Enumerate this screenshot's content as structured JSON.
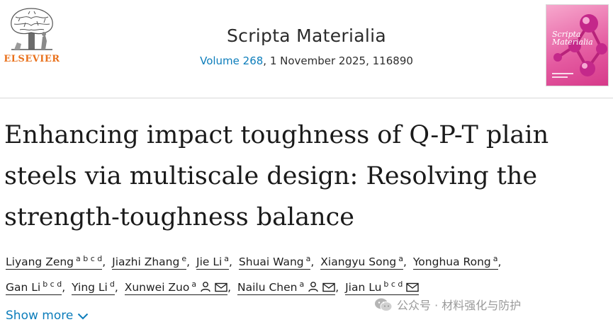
{
  "header": {
    "publisher_name": "ELSEVIER",
    "journal_name": "Scripta Materialia",
    "volume_link": "Volume 268",
    "citation_rest": ", 1 November 2025, 116890",
    "cover_title": "Scripta Materialia",
    "cover_icon": "molecule-cover-art"
  },
  "article": {
    "title_lines": [
      "Enhancing impact toughness of Q-P-T plain",
      "steels via multiscale design: Resolving the",
      "strength-toughness balance"
    ]
  },
  "authors": [
    {
      "name": "Liyang Zeng",
      "affiliations": "a b c d"
    },
    {
      "name": "Jiazhi Zhang",
      "affiliations": "e"
    },
    {
      "name": "Jie Li",
      "affiliations": "a"
    },
    {
      "name": "Shuai Wang",
      "affiliations": "a"
    },
    {
      "name": "Xiangyu Song",
      "affiliations": "a"
    },
    {
      "name": "Yonghua Rong",
      "affiliations": "a"
    },
    {
      "name": "Gan Li",
      "affiliations": "b c d"
    },
    {
      "name": "Ying Li",
      "affiliations": "d"
    },
    {
      "name": "Xunwei Zuo",
      "affiliations": "a",
      "icons": [
        "person-icon",
        "mail-icon"
      ]
    },
    {
      "name": "Nailu Chen",
      "affiliations": "a",
      "icons": [
        "person-icon",
        "mail-icon"
      ]
    },
    {
      "name": "Jian Lu",
      "affiliations": "b c d",
      "icons": [
        "mail-icon"
      ]
    }
  ],
  "show_more_label": "Show more",
  "watermark": {
    "text": "公众号 · 材料强化与防护",
    "icon": "wechat-icon"
  },
  "colors": {
    "link": "#0c7dbb",
    "publisher": "#e9711c",
    "cover": "#e45aa0"
  }
}
